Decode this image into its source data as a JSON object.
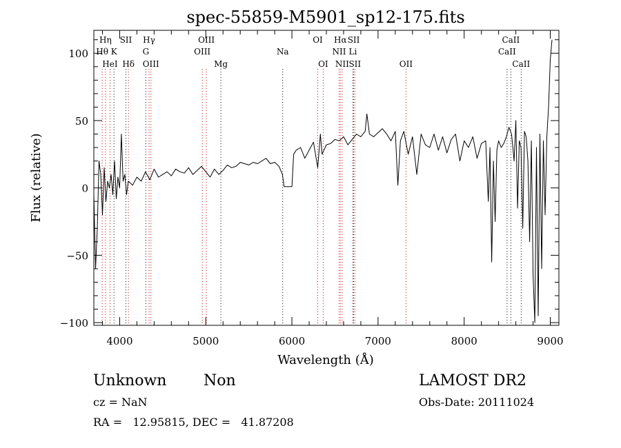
{
  "chart_data": {
    "type": "line",
    "title": "spec-55859-M5901_sp12-175.fits",
    "xlabel": "Wavelength (Å)",
    "ylabel": "Flux (relative)",
    "xlim": [
      3700,
      9100
    ],
    "ylim": [
      -102,
      117
    ],
    "x_ticks": [
      4000,
      5000,
      6000,
      7000,
      8000,
      9000
    ],
    "y_ticks": [
      -100,
      -50,
      0,
      50,
      100
    ],
    "x_tick_labels": [
      "4000",
      "5000",
      "6000",
      "7000",
      "8000",
      "9000"
    ],
    "y_tick_labels": [
      "−100",
      "−50",
      "0",
      "50",
      "100"
    ],
    "grid": false,
    "series": [
      {
        "x": [
          3700,
          3720,
          3740,
          3760,
          3780,
          3800,
          3820,
          3840,
          3860,
          3880,
          3900,
          3920,
          3940,
          3960,
          3980,
          4000,
          4020,
          4040,
          4060,
          4080,
          4100,
          4150,
          4200,
          4250,
          4300,
          4350,
          4400,
          4450,
          4500,
          4550,
          4600,
          4650,
          4700,
          4750,
          4800,
          4850,
          4900,
          4950,
          5000,
          5050,
          5100,
          5150,
          5200,
          5250,
          5300,
          5350,
          5400,
          5450,
          5500,
          5550,
          5600,
          5650,
          5700,
          5750,
          5800,
          5850,
          5890,
          5910,
          5950,
          6000,
          6020,
          6050,
          6100,
          6150,
          6200,
          6250,
          6300,
          6330,
          6350,
          6400,
          6450,
          6500,
          6550,
          6600,
          6650,
          6700,
          6750,
          6800,
          6850,
          6870,
          6900,
          6950,
          7000,
          7050,
          7100,
          7150,
          7200,
          7230,
          7260,
          7300,
          7350,
          7400,
          7450,
          7500,
          7550,
          7600,
          7650,
          7700,
          7750,
          7800,
          7850,
          7900,
          7950,
          8000,
          8050,
          8100,
          8150,
          8200,
          8250,
          8280,
          8300,
          8320,
          8340,
          8360,
          8380,
          8400,
          8430,
          8460,
          8490,
          8520,
          8550,
          8580,
          8600,
          8620,
          8640,
          8660,
          8680,
          8700,
          8720,
          8740,
          8760,
          8780,
          8800,
          8820,
          8840,
          8860,
          8880,
          8900,
          8920,
          8940,
          8960,
          8980,
          9000,
          9020
        ],
        "y": [
          -5,
          -60,
          -30,
          20,
          10,
          -20,
          15,
          -10,
          5,
          0,
          10,
          -5,
          20,
          -8,
          8,
          0,
          40,
          5,
          10,
          -5,
          5,
          2,
          8,
          5,
          12,
          6,
          14,
          8,
          10,
          12,
          9,
          14,
          12,
          11,
          15,
          10,
          13,
          16,
          12,
          8,
          14,
          10,
          13,
          17,
          15,
          16,
          19,
          18,
          17,
          19,
          18,
          20,
          22,
          18,
          19,
          16,
          10,
          1,
          1,
          1,
          25,
          28,
          30,
          22,
          28,
          34,
          15,
          40,
          25,
          32,
          33,
          36,
          35,
          38,
          32,
          36,
          40,
          38,
          42,
          55,
          40,
          38,
          41,
          44,
          40,
          35,
          42,
          2,
          35,
          42,
          25,
          38,
          10,
          40,
          32,
          30,
          40,
          28,
          38,
          26,
          36,
          40,
          20,
          35,
          30,
          38,
          22,
          33,
          35,
          -10,
          30,
          -55,
          20,
          -25,
          28,
          35,
          30,
          33,
          38,
          45,
          40,
          20,
          50,
          -15,
          35,
          30,
          -30,
          42,
          38,
          20,
          -40,
          35,
          -65,
          -100,
          30,
          -95,
          40,
          -60,
          35,
          -20,
          38,
          60,
          95,
          110
        ]
      }
    ],
    "line_annotations": [
      {
        "name": "Hη",
        "x": 3835,
        "row": 1,
        "color": "#c00000"
      },
      {
        "name": "Hθ",
        "x": 3797,
        "row": 2,
        "color": "#c00000"
      },
      {
        "name": "HeI",
        "x": 3888,
        "row": 3,
        "color": "#c00000"
      },
      {
        "name": "SII",
        "x": 4072,
        "row": 1,
        "color": "#000000"
      },
      {
        "name": "K",
        "x": 3934,
        "row": 2,
        "color": "#000000"
      },
      {
        "name": "Hδ",
        "x": 4102,
        "row": 3,
        "color": "#c00000"
      },
      {
        "name": "Hγ",
        "x": 4341,
        "row": 1,
        "color": "#c00000"
      },
      {
        "name": "G",
        "x": 4304,
        "row": 2,
        "color": "#000000"
      },
      {
        "name": "OIII",
        "x": 4363,
        "row": 3,
        "color": "#c00000"
      },
      {
        "name": "OIII",
        "x": 5007,
        "row": 1,
        "color": "#c00000"
      },
      {
        "name": "OIII",
        "x": 4959,
        "row": 2,
        "color": "#c00000"
      },
      {
        "name": "Mg",
        "x": 5175,
        "row": 3,
        "color": "#000000"
      },
      {
        "name": "Na",
        "x": 5893,
        "row": 2,
        "color": "#000000"
      },
      {
        "name": "OI",
        "x": 6300,
        "row": 1,
        "color": "#c00000"
      },
      {
        "name": "OI",
        "x": 6363,
        "row": 3,
        "color": "#c00000"
      },
      {
        "name": "Hα",
        "x": 6563,
        "row": 1,
        "color": "#c00000"
      },
      {
        "name": "SII",
        "x": 6717,
        "row": 1,
        "color": "#c00000"
      },
      {
        "name": "NII",
        "x": 6548,
        "row": 2,
        "color": "#c00000"
      },
      {
        "name": "Li",
        "x": 6708,
        "row": 2,
        "color": "#000000"
      },
      {
        "name": "NII",
        "x": 6583,
        "row": 3,
        "color": "#c00000"
      },
      {
        "name": "SII",
        "x": 6731,
        "row": 3,
        "color": "#c00000"
      },
      {
        "name": "OII",
        "x": 7325,
        "row": 3,
        "color": "#c00000"
      },
      {
        "name": "CaII",
        "x": 8542,
        "row": 1,
        "color": "#000000"
      },
      {
        "name": "CaII",
        "x": 8498,
        "row": 2,
        "color": "#000000"
      },
      {
        "name": "CaII",
        "x": 8662,
        "row": 3,
        "color": "#000000"
      }
    ]
  },
  "info": {
    "class": "Unknown",
    "subclass": "Non",
    "survey": "LAMOST DR2",
    "cz": "cz = NaN",
    "obs_date": "Obs-Date: 20111024",
    "coords": "RA =   12.95815, DEC =   41.87208"
  }
}
